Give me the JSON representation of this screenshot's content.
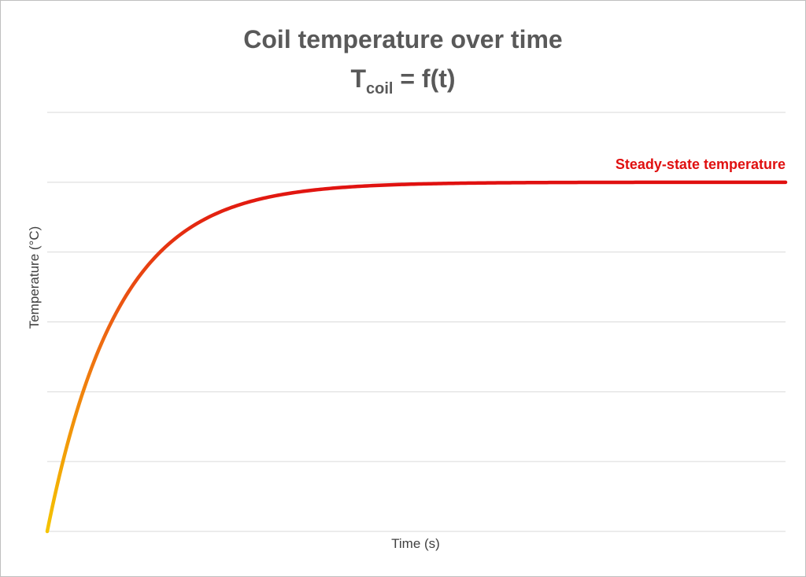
{
  "chart_data": {
    "type": "line",
    "title": "Coil temperature over time",
    "subtitle": {
      "main": "T",
      "subscript": "coil",
      "rest": " = f(t)"
    },
    "xlabel": "Time (s)",
    "ylabel": "Temperature (°C)",
    "grid": true,
    "gridlines_y": 6,
    "legend": "none",
    "annotation": "Steady-state temperature",
    "series": [
      {
        "curve": "exponential-approach",
        "x_range": [
          0,
          1
        ],
        "y_start": 0,
        "y_steady": 5,
        "ylim": [
          0,
          6
        ],
        "time_constant": 0.095,
        "x": [
          0,
          0.05,
          0.1,
          0.15,
          0.2,
          0.3,
          0.4,
          0.5,
          0.6,
          0.7,
          0.8,
          0.9,
          1.0
        ],
        "values": [
          0,
          2.04,
          3.22,
          3.99,
          4.35,
          4.81,
          4.93,
          4.98,
          4.99,
          5.0,
          5.0,
          5.0,
          5.0
        ]
      }
    ],
    "colors": {
      "curve_start": "#f5c400",
      "curve_end": "#e01010",
      "grid": "#d9d9d9",
      "text": "#595959",
      "annotation": "#e01010"
    }
  }
}
